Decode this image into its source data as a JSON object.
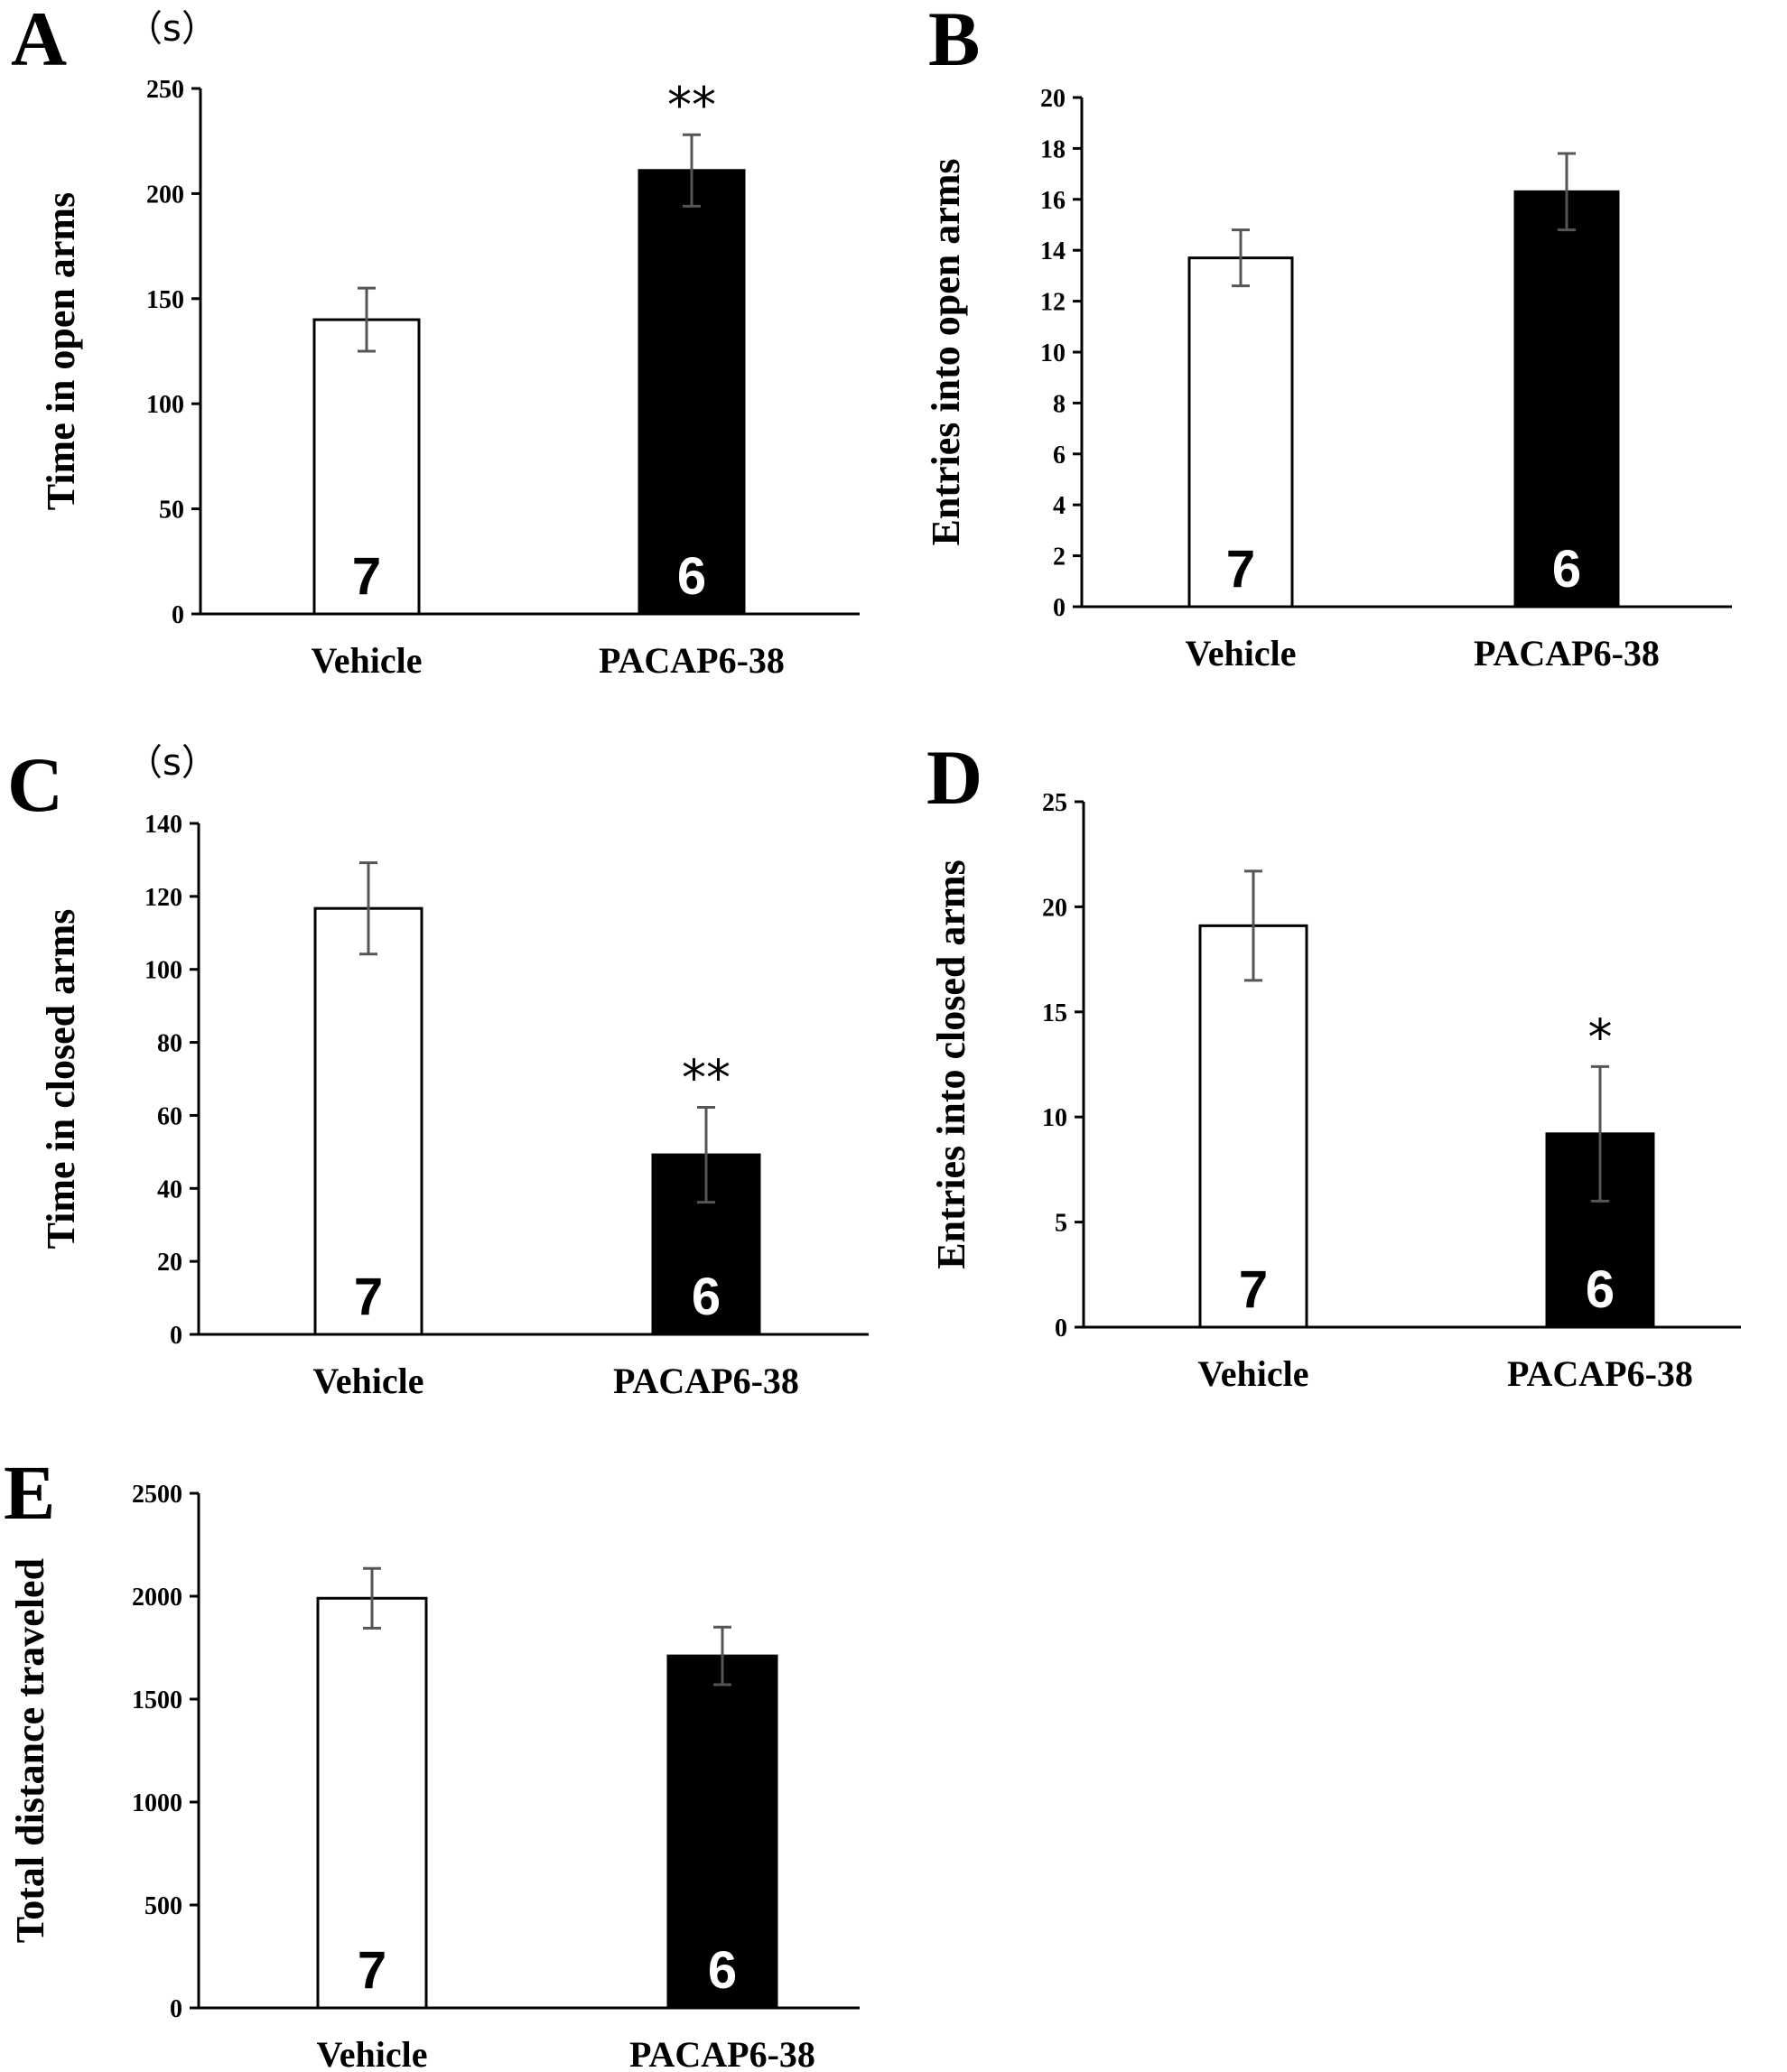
{
  "colors": {
    "vehicle_fill": "#ffffff",
    "treatment_fill": "#000000",
    "bar_stroke": "#000000",
    "error_bar": "#555555"
  },
  "chart_data": [
    {
      "panel": "A",
      "type": "bar",
      "unit": "（s）",
      "ylabel": "Time in open arms",
      "xlabel": "",
      "ylim": [
        0,
        250
      ],
      "yticks": [
        0,
        50,
        100,
        150,
        200,
        250
      ],
      "categories": [
        "Vehicle",
        "PACAP6-38"
      ],
      "values": [
        140,
        211
      ],
      "errors": [
        15,
        17
      ],
      "n_labels": [
        "7",
        "6"
      ],
      "significance": [
        "",
        "**"
      ]
    },
    {
      "panel": "B",
      "type": "bar",
      "unit": "",
      "ylabel": "Entries into open arms",
      "xlabel": "",
      "ylim": [
        0,
        20
      ],
      "yticks": [
        0,
        2,
        4,
        6,
        8,
        10,
        12,
        14,
        16,
        18,
        20
      ],
      "categories": [
        "Vehicle",
        "PACAP6-38"
      ],
      "values": [
        13.7,
        16.3
      ],
      "errors": [
        1.1,
        1.5
      ],
      "n_labels": [
        "7",
        "6"
      ],
      "significance": [
        "",
        ""
      ]
    },
    {
      "panel": "C",
      "type": "bar",
      "unit": "（s）",
      "ylabel": "Time in closed arms",
      "xlabel": "",
      "ylim": [
        0,
        140
      ],
      "yticks": [
        0,
        20,
        40,
        60,
        80,
        100,
        120,
        140
      ],
      "categories": [
        "Vehicle",
        "PACAP6-38"
      ],
      "values": [
        116.7,
        49.2
      ],
      "errors": [
        12.5,
        13
      ],
      "n_labels": [
        "7",
        "6"
      ],
      "significance": [
        "",
        "**"
      ]
    },
    {
      "panel": "D",
      "type": "bar",
      "unit": "",
      "ylabel": "Entries into closed arms",
      "xlabel": "",
      "ylim": [
        0,
        25
      ],
      "yticks": [
        0,
        5,
        10,
        15,
        20,
        25
      ],
      "categories": [
        "Vehicle",
        "PACAP6-38"
      ],
      "values": [
        19.1,
        9.2
      ],
      "errors": [
        2.6,
        3.2
      ],
      "n_labels": [
        "7",
        "6"
      ],
      "significance": [
        "",
        "*"
      ]
    },
    {
      "panel": "E",
      "type": "bar",
      "unit": "",
      "ylabel": "Total distance traveled",
      "xlabel": "",
      "ylim": [
        0,
        2500
      ],
      "yticks": [
        0,
        500,
        1000,
        1500,
        2000,
        2500
      ],
      "categories": [
        "Vehicle",
        "PACAP6-38"
      ],
      "values": [
        1990,
        1710
      ],
      "errors": [
        145,
        140
      ],
      "n_labels": [
        "7",
        "6"
      ],
      "significance": [
        "",
        ""
      ]
    }
  ]
}
